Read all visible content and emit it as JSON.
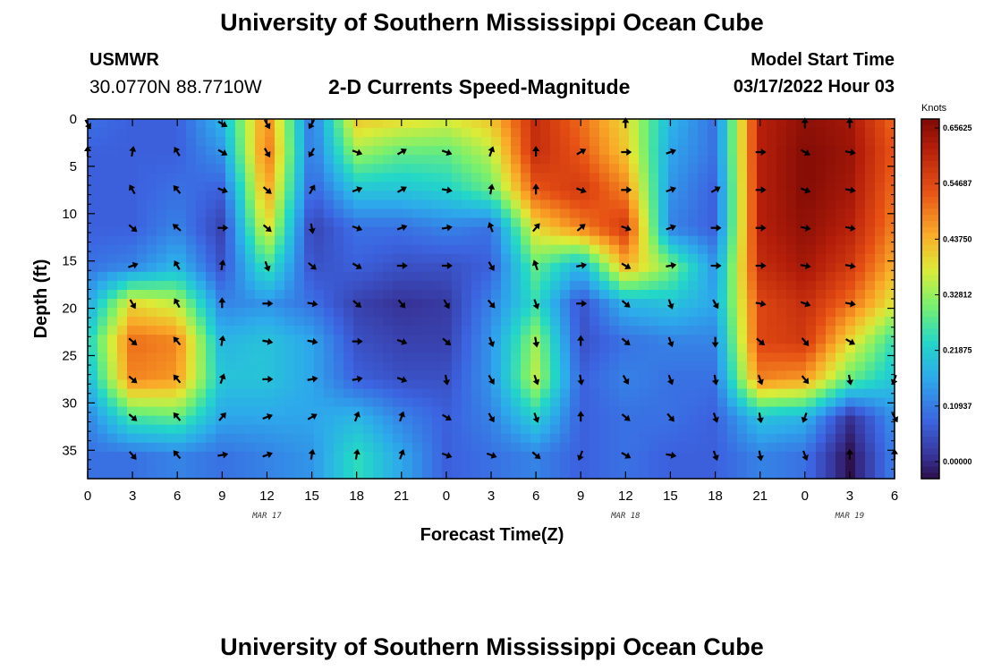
{
  "header": {
    "title": "University of Southern Mississippi Ocean Cube",
    "station_name": "USMWR",
    "coords": "30.0770N  88.7710W",
    "plot_title": "2-D Currents Speed-Magnitude",
    "model_start_label": "Model Start Time",
    "model_start_time": "03/17/2022 Hour 03"
  },
  "footer": {
    "title": "University of Southern Mississippi Ocean Cube"
  },
  "chart_data": {
    "type": "heatmap",
    "title": "2-D Currents Speed-Magnitude",
    "xlabel": "Forecast Time(Z)",
    "ylabel": "Depth (ft)",
    "units": "Knots",
    "x_hours_range": [
      0,
      54
    ],
    "y_range": [
      0,
      38
    ],
    "y_ticks": [
      "0",
      "5",
      "10",
      "15",
      "20",
      "25",
      "30",
      "35"
    ],
    "x_ticks": [
      "0",
      "3",
      "6",
      "9",
      "12",
      "15",
      "18",
      "21",
      "0",
      "3",
      "6",
      "9",
      "12",
      "15",
      "18",
      "21",
      "0",
      "3",
      "6"
    ],
    "date_labels": [
      {
        "label": "MAR 17",
        "hour": 12
      },
      {
        "label": "MAR 18",
        "hour": 36
      },
      {
        "label": "MAR 19",
        "hour": 51
      }
    ],
    "colorbar_labels": [
      "0.65625",
      "0.54687",
      "0.43750",
      "0.32812",
      "0.21875",
      "0.10937",
      "0.00000"
    ],
    "colorbar_range": [
      0,
      0.65625
    ],
    "grid_hours": [
      0,
      3,
      6,
      9,
      12,
      15,
      18,
      21,
      24,
      27,
      30,
      33,
      36,
      39,
      42,
      45,
      48,
      51,
      54
    ],
    "grid_depths": [
      0,
      3.5,
      7.5,
      11.5,
      15.5,
      19.5,
      23.5,
      27.5,
      31.5,
      35.5
    ],
    "speed": [
      [
        0.12,
        0.1,
        0.1,
        0.2,
        0.48,
        0.12,
        0.42,
        0.4,
        0.38,
        0.42,
        0.58,
        0.5,
        0.4,
        0.2,
        0.12,
        0.6,
        0.64,
        0.62,
        0.5
      ],
      [
        0.1,
        0.1,
        0.1,
        0.16,
        0.5,
        0.12,
        0.34,
        0.3,
        0.3,
        0.36,
        0.58,
        0.52,
        0.42,
        0.18,
        0.12,
        0.6,
        0.65,
        0.63,
        0.52
      ],
      [
        0.1,
        0.1,
        0.12,
        0.1,
        0.46,
        0.1,
        0.22,
        0.22,
        0.24,
        0.3,
        0.52,
        0.56,
        0.48,
        0.16,
        0.1,
        0.6,
        0.65,
        0.62,
        0.5
      ],
      [
        0.1,
        0.1,
        0.14,
        0.06,
        0.4,
        0.06,
        0.12,
        0.12,
        0.14,
        0.12,
        0.4,
        0.48,
        0.56,
        0.14,
        0.1,
        0.6,
        0.64,
        0.6,
        0.48
      ],
      [
        0.12,
        0.14,
        0.2,
        0.08,
        0.28,
        0.08,
        0.1,
        0.08,
        0.08,
        0.1,
        0.3,
        0.2,
        0.44,
        0.32,
        0.16,
        0.58,
        0.62,
        0.56,
        0.44
      ],
      [
        0.18,
        0.4,
        0.36,
        0.14,
        0.16,
        0.12,
        0.06,
        0.04,
        0.05,
        0.14,
        0.26,
        0.08,
        0.2,
        0.22,
        0.18,
        0.54,
        0.58,
        0.5,
        0.38
      ],
      [
        0.24,
        0.5,
        0.48,
        0.2,
        0.22,
        0.18,
        0.08,
        0.06,
        0.06,
        0.16,
        0.34,
        0.08,
        0.12,
        0.14,
        0.14,
        0.54,
        0.56,
        0.4,
        0.26
      ],
      [
        0.2,
        0.48,
        0.46,
        0.22,
        0.22,
        0.18,
        0.1,
        0.08,
        0.08,
        0.16,
        0.36,
        0.1,
        0.14,
        0.12,
        0.12,
        0.48,
        0.46,
        0.3,
        0.22
      ],
      [
        0.14,
        0.28,
        0.3,
        0.18,
        0.18,
        0.18,
        0.2,
        0.14,
        0.1,
        0.14,
        0.24,
        0.1,
        0.12,
        0.12,
        0.1,
        0.22,
        0.2,
        0.04,
        0.16
      ],
      [
        0.12,
        0.12,
        0.14,
        0.12,
        0.14,
        0.16,
        0.26,
        0.18,
        0.1,
        0.12,
        0.14,
        0.1,
        0.12,
        0.1,
        0.1,
        0.14,
        0.12,
        0.0,
        0.14
      ]
    ],
    "direction_deg": [
      [
        150,
        0,
        0,
        120,
        150,
        210,
        0,
        0,
        0,
        0,
        0,
        0,
        0,
        0,
        0,
        0,
        0,
        0,
        0
      ],
      [
        0,
        10,
        330,
        120,
        150,
        210,
        110,
        60,
        110,
        20,
        0,
        60,
        90,
        70,
        0,
        90,
        120,
        100,
        0
      ],
      [
        0,
        330,
        320,
        110,
        130,
        30,
        70,
        60,
        100,
        10,
        0,
        110,
        90,
        70,
        60,
        90,
        110,
        100,
        0
      ],
      [
        0,
        130,
        310,
        90,
        130,
        170,
        110,
        70,
        80,
        340,
        40,
        50,
        110,
        70,
        90,
        90,
        100,
        100,
        0
      ],
      [
        0,
        70,
        330,
        10,
        160,
        130,
        120,
        90,
        90,
        150,
        340,
        80,
        120,
        80,
        90,
        90,
        100,
        100,
        0
      ],
      [
        0,
        150,
        330,
        0,
        90,
        100,
        130,
        140,
        150,
        140,
        160,
        90,
        130,
        160,
        150,
        100,
        110,
        100,
        0
      ],
      [
        170,
        130,
        320,
        10,
        100,
        100,
        90,
        110,
        130,
        160,
        170,
        0,
        130,
        160,
        180,
        130,
        140,
        120,
        180
      ],
      [
        0,
        130,
        320,
        20,
        90,
        80,
        80,
        110,
        170,
        150,
        160,
        170,
        150,
        160,
        170,
        160,
        140,
        170,
        200
      ],
      [
        0,
        130,
        320,
        40,
        70,
        60,
        20,
        20,
        120,
        150,
        160,
        0,
        130,
        140,
        160,
        170,
        200,
        0,
        150
      ],
      [
        0,
        140,
        320,
        80,
        70,
        10,
        10,
        20,
        110,
        110,
        130,
        200,
        120,
        100,
        160,
        170,
        160,
        0,
        0
      ]
    ],
    "arrow_depths": [
      0.5,
      3.5,
      7.5,
      11.5,
      15.5,
      19.5,
      23.5,
      27.5,
      31.5,
      35.5
    ],
    "arrow_present": [
      [
        1,
        0,
        0,
        1,
        1,
        1,
        0,
        0,
        0,
        0,
        0,
        0,
        1,
        0,
        0,
        0,
        1,
        1,
        0
      ],
      [
        1,
        1,
        1,
        1,
        1,
        1,
        1,
        1,
        1,
        1,
        1,
        1,
        1,
        1,
        0,
        1,
        1,
        1,
        0
      ],
      [
        0,
        1,
        1,
        1,
        1,
        1,
        1,
        1,
        1,
        1,
        1,
        1,
        1,
        1,
        1,
        1,
        1,
        1,
        0
      ],
      [
        0,
        1,
        1,
        1,
        1,
        1,
        1,
        1,
        1,
        1,
        1,
        1,
        1,
        1,
        1,
        1,
        1,
        1,
        0
      ],
      [
        0,
        1,
        1,
        1,
        1,
        1,
        1,
        1,
        1,
        1,
        1,
        1,
        1,
        1,
        1,
        1,
        1,
        1,
        0
      ],
      [
        0,
        1,
        1,
        1,
        1,
        1,
        1,
        1,
        1,
        1,
        1,
        1,
        1,
        1,
        1,
        1,
        1,
        1,
        0
      ],
      [
        0,
        1,
        1,
        1,
        1,
        1,
        1,
        1,
        1,
        1,
        1,
        1,
        1,
        1,
        1,
        1,
        1,
        1,
        0
      ],
      [
        0,
        1,
        1,
        1,
        1,
        1,
        1,
        1,
        1,
        1,
        1,
        1,
        1,
        1,
        1,
        1,
        1,
        1,
        1
      ],
      [
        0,
        1,
        1,
        1,
        1,
        1,
        1,
        1,
        1,
        1,
        1,
        1,
        1,
        1,
        1,
        1,
        1,
        0,
        1
      ],
      [
        0,
        1,
        1,
        1,
        1,
        1,
        1,
        1,
        1,
        1,
        1,
        1,
        1,
        1,
        1,
        1,
        1,
        1,
        1
      ]
    ]
  }
}
